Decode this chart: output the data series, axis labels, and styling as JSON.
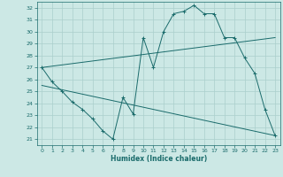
{
  "xlabel": "Humidex (Indice chaleur)",
  "bg_color": "#cce8e5",
  "grid_color": "#aacfcc",
  "line_color": "#1a6b6b",
  "xlim": [
    -0.5,
    23.5
  ],
  "ylim": [
    20.5,
    32.5
  ],
  "yticks": [
    21,
    22,
    23,
    24,
    25,
    26,
    27,
    28,
    29,
    30,
    31,
    32
  ],
  "xticks": [
    0,
    1,
    2,
    3,
    4,
    5,
    6,
    7,
    8,
    9,
    10,
    11,
    12,
    13,
    14,
    15,
    16,
    17,
    18,
    19,
    20,
    21,
    22,
    23
  ],
  "series": [
    [
      0,
      27.0
    ],
    [
      1,
      25.8
    ],
    [
      2,
      25.0
    ],
    [
      3,
      24.1
    ],
    [
      4,
      23.5
    ],
    [
      5,
      22.7
    ],
    [
      6,
      21.7
    ],
    [
      7,
      21.0
    ],
    [
      8,
      24.5
    ],
    [
      9,
      23.1
    ],
    [
      10,
      29.5
    ],
    [
      11,
      27.0
    ],
    [
      12,
      30.0
    ],
    [
      13,
      31.5
    ],
    [
      14,
      31.7
    ],
    [
      15,
      32.2
    ],
    [
      16,
      31.5
    ],
    [
      17,
      31.5
    ],
    [
      18,
      29.5
    ],
    [
      19,
      29.5
    ],
    [
      20,
      27.8
    ],
    [
      21,
      26.5
    ],
    [
      22,
      23.5
    ],
    [
      23,
      21.3
    ]
  ],
  "line2": [
    [
      0,
      27.0
    ],
    [
      23,
      29.5
    ]
  ],
  "line3": [
    [
      0,
      25.5
    ],
    [
      23,
      21.3
    ]
  ]
}
